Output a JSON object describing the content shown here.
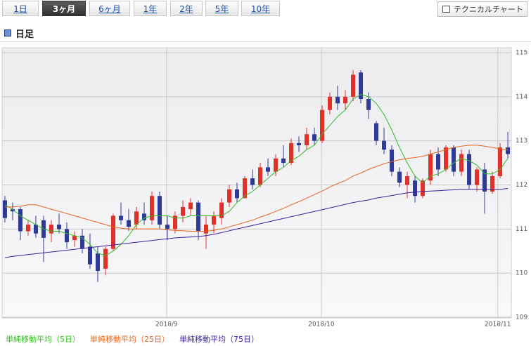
{
  "tabs": [
    {
      "label": "1日",
      "selected": false
    },
    {
      "label": "3ヶ月",
      "selected": true
    },
    {
      "label": "6ヶ月",
      "selected": false
    },
    {
      "label": "1年",
      "selected": false
    },
    {
      "label": "2年",
      "selected": false
    },
    {
      "label": "5年",
      "selected": false
    },
    {
      "label": "10年",
      "selected": false
    }
  ],
  "technical_button": "テクニカルチャート",
  "section_title": "日足",
  "chart_data": {
    "type": "candlestick",
    "up_color": "#e0302a",
    "down_color": "#2e3a9a",
    "grid": true,
    "ylim": [
      109,
      115
    ],
    "yticks": [
      109,
      110,
      111,
      112,
      113,
      114,
      115
    ],
    "xlim": [
      -0.36,
      65.45
    ],
    "xticks": [
      {
        "value": 20.9,
        "label": "2018/9"
      },
      {
        "value": 40.9,
        "label": "2018/10"
      },
      {
        "value": 63.7,
        "label": "2018/11"
      }
    ],
    "open": [
      111.65,
      111.45,
      111.45,
      110.95,
      111.1,
      111.2,
      110.9,
      111.1,
      111.0,
      110.75,
      110.85,
      110.6,
      110.45,
      110.1,
      110.55,
      111.3,
      111.2,
      111.1,
      111.35,
      111.2,
      111.75,
      111.1,
      111.0,
      111.3,
      111.45,
      111.6,
      110.9,
      111.1,
      111.25,
      111.6,
      111.9,
      111.7,
      112.15,
      112.0,
      112.4,
      112.3,
      112.6,
      112.5,
      112.95,
      112.9,
      113.15,
      113.0,
      113.7,
      114.0,
      113.85,
      114.0,
      114.55,
      113.95,
      113.4,
      113.0,
      112.8,
      112.3,
      112.0,
      112.1,
      111.75,
      112.1,
      112.7,
      112.35,
      112.85,
      112.3,
      112.7,
      112.0,
      112.35,
      111.85,
      112.2,
      112.85
    ],
    "high": [
      111.75,
      111.6,
      111.5,
      111.2,
      111.3,
      111.3,
      111.2,
      111.35,
      111.15,
      110.95,
      111.0,
      110.9,
      110.6,
      110.6,
      111.35,
      111.6,
      111.45,
      111.5,
      111.6,
      111.85,
      111.85,
      111.3,
      111.4,
      111.65,
      111.7,
      111.65,
      111.3,
      111.4,
      111.7,
      112.0,
      112.05,
      112.2,
      112.35,
      112.5,
      112.6,
      112.7,
      112.9,
      113.05,
      113.1,
      113.3,
      113.3,
      113.8,
      114.1,
      114.25,
      114.15,
      114.6,
      114.6,
      114.1,
      113.45,
      113.3,
      112.9,
      112.4,
      112.3,
      112.2,
      112.15,
      112.8,
      112.85,
      112.9,
      112.9,
      112.8,
      112.8,
      112.4,
      112.5,
      112.3,
      112.95,
      113.2
    ],
    "low": [
      111.15,
      111.2,
      110.75,
      110.85,
      110.8,
      110.25,
      110.7,
      110.9,
      110.55,
      110.6,
      110.45,
      110.1,
      109.8,
      109.95,
      110.5,
      111.1,
      110.95,
      111.0,
      111.1,
      111.1,
      111.0,
      110.75,
      110.9,
      111.15,
      111.3,
      110.75,
      110.55,
      110.9,
      111.1,
      111.5,
      111.6,
      111.7,
      111.9,
      111.95,
      112.2,
      112.2,
      112.4,
      112.45,
      112.75,
      112.8,
      112.9,
      112.95,
      113.6,
      113.7,
      113.7,
      113.9,
      113.85,
      113.5,
      112.9,
      112.7,
      112.2,
      111.95,
      111.7,
      111.6,
      111.7,
      112.0,
      112.2,
      112.3,
      112.2,
      112.2,
      111.9,
      111.85,
      111.35,
      111.8,
      112.15,
      112.6
    ],
    "close": [
      111.25,
      111.4,
      110.95,
      111.1,
      110.9,
      110.8,
      111.1,
      111.0,
      110.7,
      110.85,
      110.55,
      110.2,
      110.05,
      110.55,
      111.3,
      111.2,
      111.05,
      111.4,
      111.2,
      111.75,
      111.1,
      111.0,
      111.3,
      111.5,
      111.6,
      110.95,
      111.1,
      111.3,
      111.6,
      111.9,
      111.7,
      112.15,
      112.0,
      112.4,
      112.3,
      112.6,
      112.5,
      112.95,
      112.9,
      113.15,
      113.0,
      113.7,
      114.0,
      113.85,
      114.0,
      114.5,
      113.95,
      113.7,
      113.0,
      112.8,
      112.3,
      112.05,
      112.2,
      111.75,
      112.1,
      112.7,
      112.35,
      112.85,
      112.3,
      112.7,
      112.0,
      112.35,
      111.85,
      112.2,
      112.85,
      112.7
    ],
    "series": [
      {
        "name": "単純移動平均（5日）",
        "color": "#33bb22",
        "values": [
          111.55,
          111.45,
          111.3,
          111.2,
          111.1,
          111.0,
          110.95,
          110.95,
          110.9,
          110.85,
          110.8,
          110.65,
          110.45,
          110.4,
          110.5,
          110.65,
          110.85,
          111.1,
          111.25,
          111.3,
          111.3,
          111.3,
          111.25,
          111.25,
          111.3,
          111.3,
          111.3,
          111.3,
          111.3,
          111.4,
          111.6,
          111.75,
          111.85,
          112.0,
          112.15,
          112.3,
          112.4,
          112.55,
          112.65,
          112.8,
          112.9,
          113.15,
          113.35,
          113.55,
          113.7,
          113.95,
          114.05,
          114.0,
          113.85,
          113.6,
          113.25,
          112.85,
          112.5,
          112.2,
          112.05,
          112.2,
          112.25,
          112.35,
          112.5,
          112.6,
          112.55,
          112.45,
          112.25,
          112.25,
          112.35,
          112.6
        ]
      },
      {
        "name": "単純移動平均（25日）",
        "color": "#e8641e",
        "values": [
          111.5,
          111.5,
          111.52,
          111.55,
          111.55,
          111.5,
          111.45,
          111.4,
          111.35,
          111.3,
          111.25,
          111.2,
          111.15,
          111.1,
          111.05,
          111.02,
          111.0,
          111.0,
          111.0,
          111.0,
          111.0,
          110.98,
          110.97,
          110.96,
          110.95,
          110.95,
          110.95,
          110.97,
          111.0,
          111.05,
          111.1,
          111.15,
          111.2,
          111.27,
          111.33,
          111.4,
          111.47,
          111.55,
          111.62,
          111.7,
          111.78,
          111.86,
          111.95,
          112.03,
          112.1,
          112.2,
          112.27,
          112.35,
          112.42,
          112.48,
          112.53,
          112.57,
          112.6,
          112.62,
          112.65,
          112.7,
          112.75,
          112.8,
          112.85,
          112.88,
          112.9,
          112.9,
          112.88,
          112.85,
          112.82,
          112.8
        ]
      },
      {
        "name": "単純移動平均（75日）",
        "color": "#3b1e9c",
        "values": [
          110.35,
          110.38,
          110.4,
          110.42,
          110.44,
          110.46,
          110.48,
          110.5,
          110.52,
          110.54,
          110.56,
          110.58,
          110.6,
          110.62,
          110.64,
          110.66,
          110.68,
          110.7,
          110.72,
          110.74,
          110.76,
          110.78,
          110.8,
          110.81,
          110.82,
          110.83,
          110.85,
          110.88,
          110.92,
          110.96,
          111.0,
          111.04,
          111.08,
          111.12,
          111.16,
          111.2,
          111.24,
          111.28,
          111.32,
          111.36,
          111.4,
          111.44,
          111.48,
          111.52,
          111.56,
          111.6,
          111.63,
          111.66,
          111.7,
          111.73,
          111.76,
          111.79,
          111.82,
          111.84,
          111.85,
          111.86,
          111.87,
          111.88,
          111.89,
          111.9,
          111.9,
          111.9,
          111.9,
          111.9,
          111.9,
          111.92
        ]
      }
    ]
  }
}
